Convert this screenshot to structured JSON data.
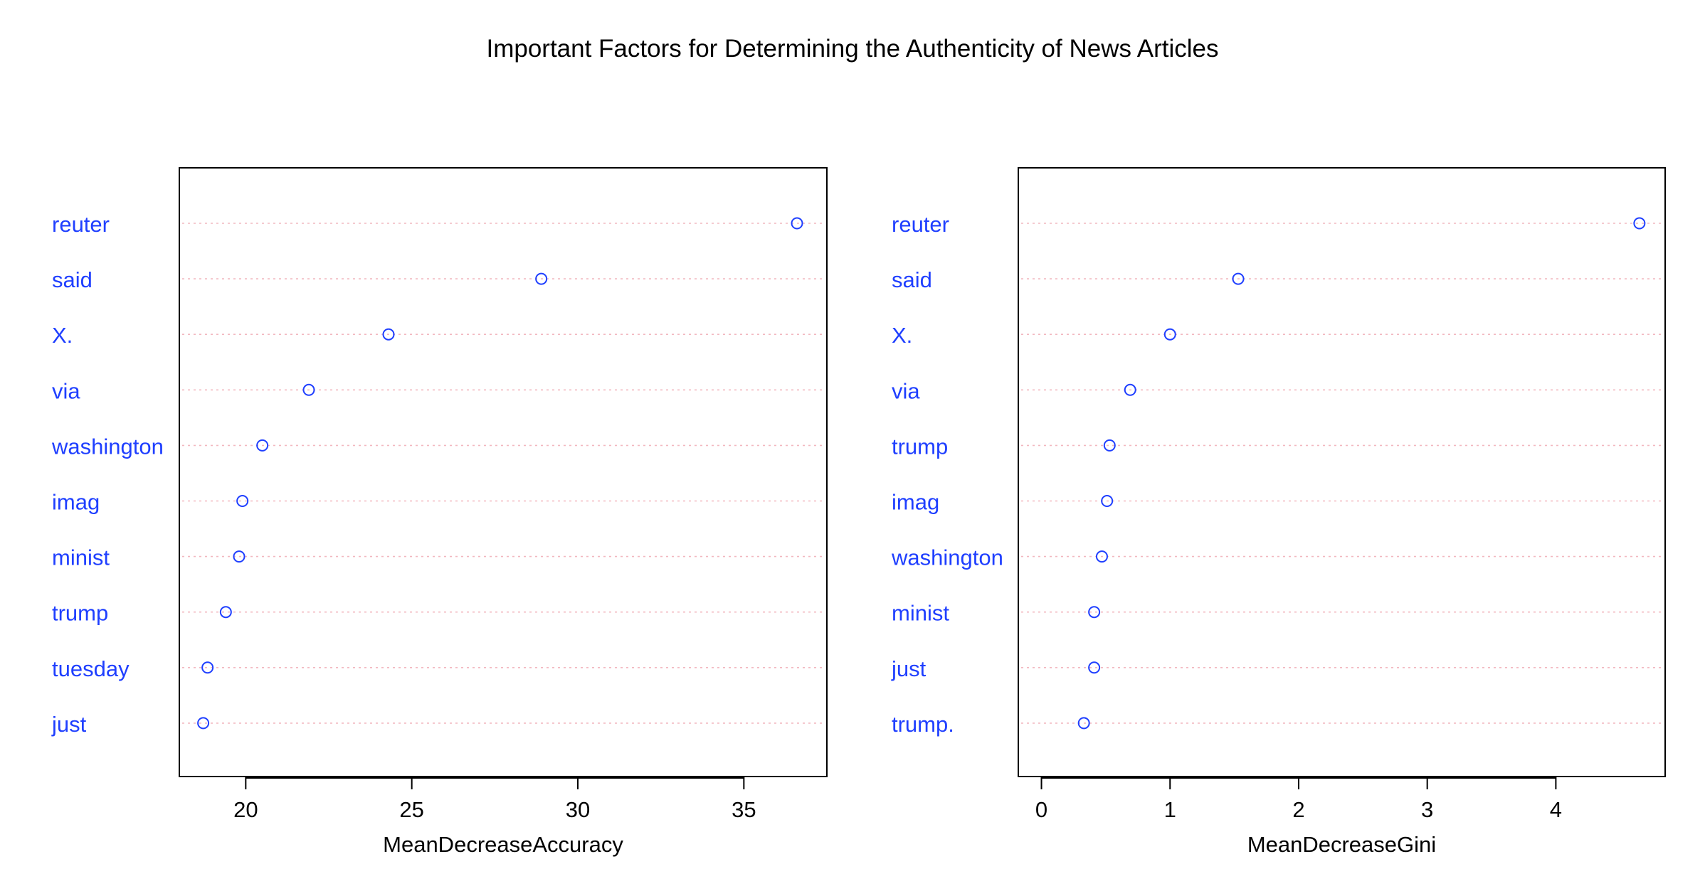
{
  "title": "Important Factors for Determining the Authenticity of News Articles",
  "chart_data": [
    {
      "type": "scatter",
      "xlabel": "MeanDecreaseAccuracy",
      "xlim": [
        18,
        37.5
      ],
      "xticks": [
        20,
        25,
        30,
        35
      ],
      "categories": [
        "reuter",
        "said",
        "X.",
        "via",
        "washington",
        "imag",
        "minist",
        "trump",
        "tuesday",
        "just"
      ],
      "values": [
        36.6,
        28.9,
        24.3,
        21.9,
        20.5,
        19.9,
        19.8,
        19.4,
        18.85,
        18.72
      ],
      "grid": "horizontal dotted",
      "colors": {
        "points": "#1f3fff",
        "labels": "#1f3fff",
        "grid": "#f2b8c0"
      }
    },
    {
      "type": "scatter",
      "xlabel": "MeanDecreaseGini",
      "xlim": [
        -0.18,
        4.85
      ],
      "xticks": [
        0,
        1,
        2,
        3,
        4
      ],
      "categories": [
        "reuter",
        "said",
        "X.",
        "via",
        "trump",
        "imag",
        "washington",
        "minist",
        "just",
        "trump."
      ],
      "values": [
        4.65,
        1.53,
        1.0,
        0.69,
        0.53,
        0.51,
        0.47,
        0.41,
        0.41,
        0.33
      ],
      "grid": "horizontal dotted",
      "colors": {
        "points": "#1f3fff",
        "labels": "#1f3fff",
        "grid": "#f2b8c0"
      }
    }
  ]
}
